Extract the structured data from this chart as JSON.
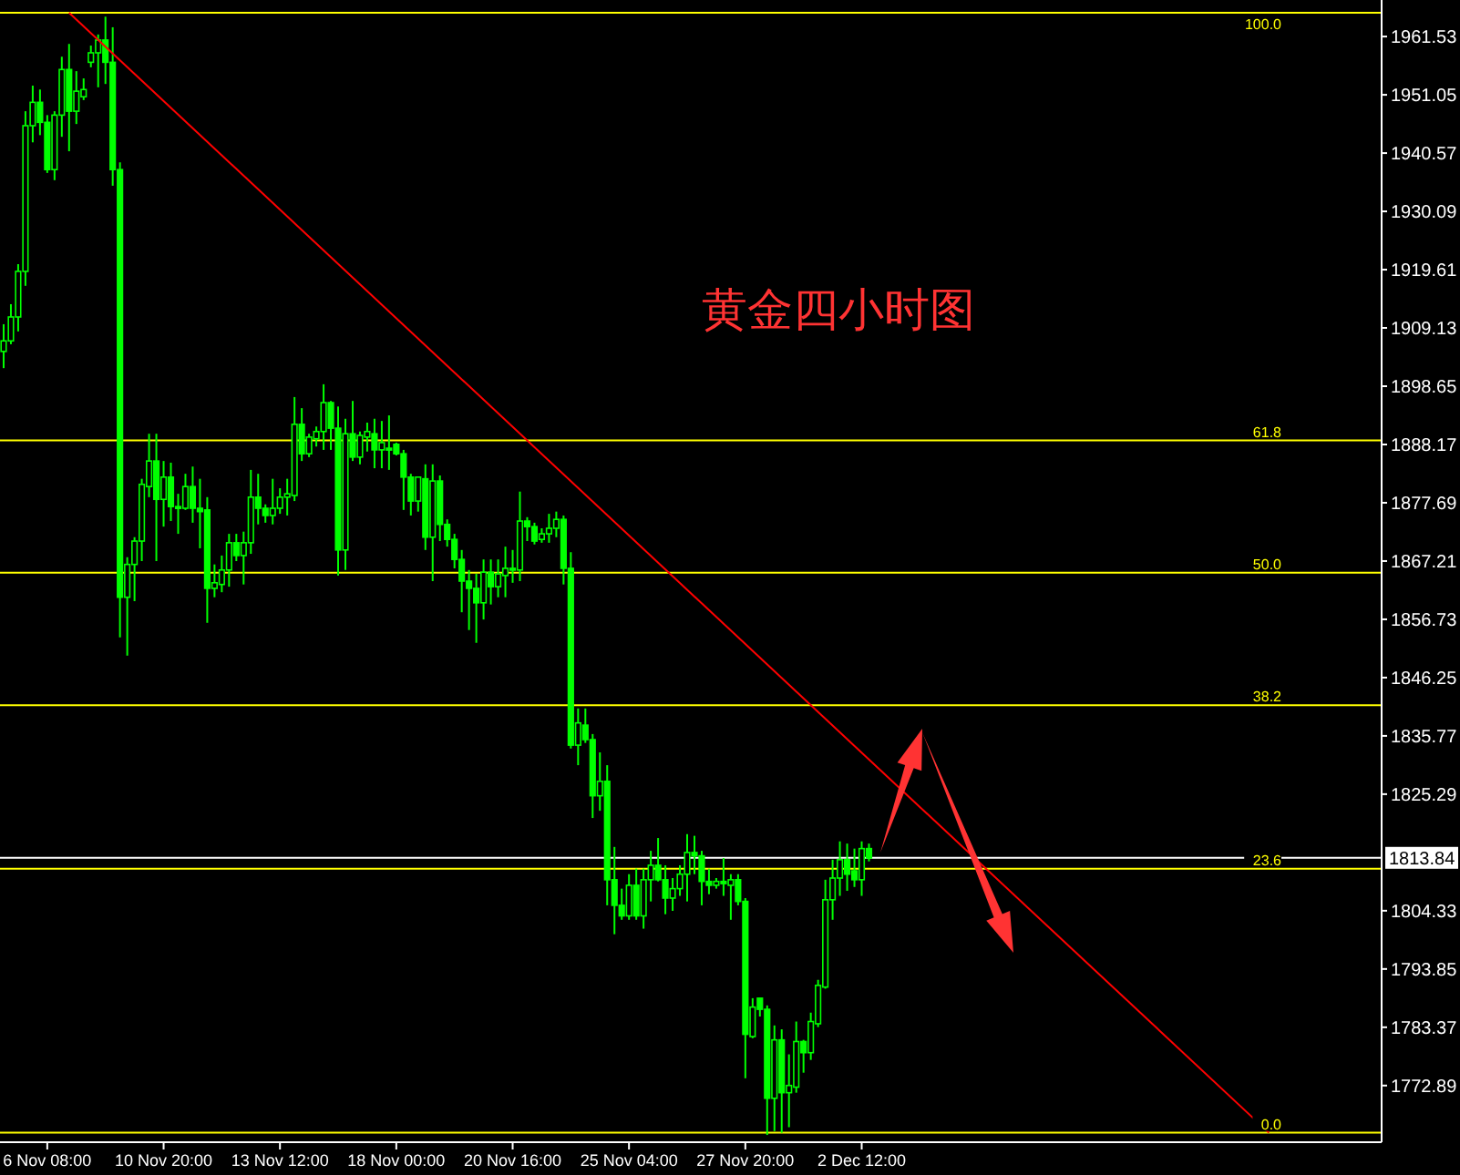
{
  "chart_data": {
    "type": "candlestick",
    "title": "黄金四小时图",
    "categories": [
      null,
      null,
      null,
      null,
      null,
      null,
      "6 Nov 08:00",
      null,
      null,
      null,
      null,
      null,
      null,
      null,
      null,
      null,
      null,
      null,
      null,
      null,
      null,
      null,
      "10 Nov 20:00",
      null,
      null,
      null,
      null,
      null,
      null,
      null,
      null,
      null,
      null,
      null,
      null,
      null,
      null,
      null,
      "13 Nov 12:00",
      null,
      null,
      null,
      null,
      null,
      null,
      null,
      null,
      null,
      null,
      null,
      null,
      null,
      null,
      null,
      "18 Nov 00:00",
      null,
      null,
      null,
      null,
      null,
      null,
      null,
      null,
      null,
      null,
      null,
      null,
      null,
      null,
      null,
      "20 Nov 16:00",
      null,
      null,
      null,
      null,
      null,
      null,
      null,
      null,
      null,
      null,
      null,
      null,
      null,
      null,
      null,
      "25 Nov 04:00",
      null,
      null,
      null,
      null,
      null,
      null,
      null,
      null,
      null,
      null,
      null,
      null,
      null,
      null,
      null,
      "27 Nov 20:00",
      null,
      null,
      null,
      null,
      null,
      null,
      null,
      null,
      null,
      null,
      null,
      null,
      null,
      null,
      null,
      "2 Dec 12:00",
      null,
      null,
      null,
      null,
      null,
      null,
      null,
      null,
      null,
      null,
      null,
      null,
      null,
      null,
      null,
      null,
      null,
      null,
      null,
      null,
      null,
      null,
      null,
      null,
      null,
      null,
      null,
      null,
      null,
      null,
      null,
      null,
      null,
      null,
      null,
      null,
      null,
      null,
      null,
      null,
      null,
      null,
      null,
      null,
      null,
      null,
      null,
      null,
      null,
      null,
      null,
      null,
      null,
      null,
      null,
      null,
      null,
      null,
      null,
      null,
      null,
      null,
      null,
      null,
      null,
      null,
      null,
      null,
      null,
      null,
      null
    ],
    "series": [
      {
        "color": "#00ff00",
        "ohlc": [
          [
            1904.9,
            1909.8,
            1901.9,
            1906.8
          ],
          [
            1906.8,
            1913.4,
            1906.2,
            1911.1
          ],
          [
            1911.1,
            1920.6,
            1908.5,
            1919.3
          ],
          [
            1919.3,
            1948.1,
            1916.7,
            1945.5
          ],
          [
            1945.5,
            1952.7,
            1942.5,
            1949.7
          ],
          [
            1949.7,
            1952.0,
            1943.8,
            1946.1
          ],
          [
            1946.1,
            1947.4,
            1937.0,
            1937.6
          ],
          [
            1937.6,
            1948.1,
            1935.7,
            1947.4
          ],
          [
            1947.4,
            1957.9,
            1943.5,
            1955.6
          ],
          [
            1955.6,
            1960.2,
            1940.9,
            1948.1
          ],
          [
            1948.1,
            1955.3,
            1945.8,
            1951.7
          ],
          [
            1950.7,
            1954.0,
            1950.1,
            1952.0
          ],
          [
            1956.9,
            1959.9,
            1956.0,
            1958.6
          ],
          [
            1958.6,
            1961.9,
            1952.4,
            1960.9
          ],
          [
            1960.9,
            1965.1,
            1953.0,
            1956.9
          ],
          [
            1956.9,
            1963.2,
            1934.7,
            1937.6
          ],
          [
            1937.6,
            1938.9,
            1853.5,
            1860.7
          ],
          [
            1860.7,
            1867.9,
            1850.2,
            1866.6
          ],
          [
            1866.6,
            1871.5,
            1860.0,
            1870.8
          ],
          [
            1870.8,
            1882.0,
            1867.2,
            1881.0
          ],
          [
            1880.6,
            1890.1,
            1878.7,
            1885.2
          ],
          [
            1885.2,
            1890.1,
            1867.2,
            1878.3
          ],
          [
            1878.3,
            1885.2,
            1873.4,
            1882.3
          ],
          [
            1882.3,
            1884.9,
            1874.4,
            1877.0
          ],
          [
            1877.0,
            1879.3,
            1872.1,
            1876.7
          ],
          [
            1876.7,
            1882.9,
            1876.4,
            1880.6
          ],
          [
            1880.6,
            1884.2,
            1874.1,
            1876.7
          ],
          [
            1876.7,
            1882.0,
            1869.5,
            1876.1
          ],
          [
            1876.4,
            1878.7,
            1856.1,
            1862.3
          ],
          [
            1862.3,
            1866.6,
            1860.7,
            1863.3
          ],
          [
            1863.0,
            1868.2,
            1861.6,
            1865.6
          ],
          [
            1865.6,
            1872.1,
            1862.6,
            1870.5
          ],
          [
            1870.5,
            1872.1,
            1867.2,
            1868.2
          ],
          [
            1868.2,
            1872.5,
            1863.0,
            1870.5
          ],
          [
            1870.5,
            1883.6,
            1868.5,
            1878.7
          ],
          [
            1878.7,
            1882.9,
            1873.8,
            1876.7
          ],
          [
            1876.7,
            1877.4,
            1874.1,
            1875.4
          ],
          [
            1875.4,
            1882.0,
            1873.8,
            1876.7
          ],
          [
            1876.7,
            1880.3,
            1875.7,
            1878.7
          ],
          [
            1878.7,
            1882.0,
            1875.4,
            1879.3
          ],
          [
            1879.0,
            1896.7,
            1878.0,
            1891.8
          ],
          [
            1891.8,
            1894.7,
            1885.2,
            1886.5
          ],
          [
            1886.5,
            1890.1,
            1885.9,
            1889.5
          ],
          [
            1889.2,
            1891.4,
            1887.8,
            1890.5
          ],
          [
            1890.5,
            1899.0,
            1887.2,
            1895.7
          ],
          [
            1895.7,
            1896.0,
            1887.2,
            1891.1
          ],
          [
            1891.1,
            1895.0,
            1864.6,
            1869.2
          ],
          [
            1869.2,
            1892.8,
            1865.6,
            1890.1
          ],
          [
            1890.1,
            1896.0,
            1885.2,
            1885.9
          ],
          [
            1885.9,
            1890.5,
            1884.6,
            1889.8
          ],
          [
            1889.5,
            1892.1,
            1886.9,
            1890.5
          ],
          [
            1890.1,
            1892.8,
            1883.9,
            1887.2
          ],
          [
            1887.2,
            1892.4,
            1883.9,
            1888.5
          ],
          [
            1887.5,
            1893.4,
            1883.6,
            1887.2
          ],
          [
            1888.2,
            1888.5,
            1886.2,
            1886.5
          ],
          [
            1886.5,
            1887.2,
            1876.4,
            1882.3
          ],
          [
            1882.3,
            1882.9,
            1875.4,
            1878.0
          ],
          [
            1878.0,
            1882.3,
            1876.1,
            1882.3
          ],
          [
            1882.0,
            1884.6,
            1869.2,
            1871.5
          ],
          [
            1871.5,
            1884.6,
            1863.6,
            1881.6
          ],
          [
            1881.6,
            1882.6,
            1870.8,
            1873.8
          ],
          [
            1873.8,
            1874.7,
            1869.8,
            1871.1
          ],
          [
            1871.1,
            1872.1,
            1865.9,
            1867.5
          ],
          [
            1867.5,
            1869.2,
            1858.0,
            1863.6
          ],
          [
            1863.6,
            1865.6,
            1854.8,
            1862.3
          ],
          [
            1862.3,
            1864.9,
            1852.5,
            1859.7
          ],
          [
            1859.7,
            1867.5,
            1856.7,
            1865.2
          ],
          [
            1865.2,
            1867.5,
            1859.4,
            1862.6
          ],
          [
            1862.6,
            1867.5,
            1860.7,
            1864.9
          ],
          [
            1864.6,
            1869.8,
            1860.7,
            1865.9
          ],
          [
            1865.9,
            1869.2,
            1863.3,
            1865.6
          ],
          [
            1865.6,
            1879.7,
            1863.6,
            1874.4
          ],
          [
            1874.4,
            1875.1,
            1870.8,
            1873.4
          ],
          [
            1873.4,
            1874.1,
            1870.2,
            1870.8
          ],
          [
            1871.1,
            1873.1,
            1870.5,
            1872.1
          ],
          [
            1872.1,
            1875.7,
            1870.5,
            1873.1
          ],
          [
            1873.1,
            1876.1,
            1871.5,
            1874.7
          ],
          [
            1874.7,
            1875.4,
            1863.0,
            1865.9
          ],
          [
            1865.9,
            1868.8,
            1833.5,
            1834.1
          ],
          [
            1834.1,
            1840.7,
            1830.5,
            1838.1
          ],
          [
            1837.7,
            1840.7,
            1834.5,
            1835.1
          ],
          [
            1835.1,
            1836.1,
            1821.0,
            1825.0
          ],
          [
            1825.0,
            1832.8,
            1822.3,
            1827.6
          ],
          [
            1827.6,
            1830.5,
            1805.3,
            1809.9
          ],
          [
            1809.9,
            1815.8,
            1800.1,
            1805.3
          ],
          [
            1805.3,
            1808.3,
            1802.7,
            1803.4
          ],
          [
            1803.4,
            1810.9,
            1802.7,
            1808.9
          ],
          [
            1808.9,
            1811.9,
            1802.7,
            1803.4
          ],
          [
            1803.4,
            1811.9,
            1801.1,
            1809.9
          ],
          [
            1809.9,
            1815.1,
            1806.0,
            1812.5
          ],
          [
            1812.5,
            1817.4,
            1809.6,
            1809.9
          ],
          [
            1809.9,
            1812.5,
            1803.7,
            1806.6
          ],
          [
            1806.6,
            1810.2,
            1804.3,
            1808.3
          ],
          [
            1808.3,
            1812.5,
            1807.0,
            1810.9
          ],
          [
            1810.9,
            1818.1,
            1806.0,
            1814.8
          ],
          [
            1814.8,
            1817.8,
            1810.9,
            1814.2
          ],
          [
            1814.2,
            1815.1,
            1805.3,
            1809.6
          ],
          [
            1809.6,
            1811.9,
            1807.3,
            1808.9
          ],
          [
            1808.9,
            1810.2,
            1808.3,
            1809.6
          ],
          [
            1809.6,
            1813.8,
            1807.0,
            1809.2
          ],
          [
            1808.9,
            1810.9,
            1802.7,
            1809.9
          ],
          [
            1809.9,
            1810.9,
            1805.3,
            1806.0
          ],
          [
            1806.0,
            1806.6,
            1774.2,
            1782.1
          ],
          [
            1781.7,
            1788.6,
            1781.4,
            1787.0
          ],
          [
            1788.6,
            1788.6,
            1785.3,
            1786.6
          ],
          [
            1786.6,
            1787.3,
            1764.0,
            1770.6
          ],
          [
            1770.6,
            1783.7,
            1764.7,
            1781.1
          ],
          [
            1781.1,
            1783.0,
            1764.4,
            1771.6
          ],
          [
            1771.6,
            1778.5,
            1765.4,
            1772.9
          ],
          [
            1772.6,
            1784.4,
            1771.6,
            1780.8
          ],
          [
            1780.8,
            1781.1,
            1775.2,
            1778.8
          ],
          [
            1778.8,
            1786.0,
            1777.5,
            1784.4
          ],
          [
            1784.0,
            1791.9,
            1783.4,
            1790.9
          ],
          [
            1790.6,
            1809.9,
            1790.3,
            1806.3
          ],
          [
            1806.3,
            1813.5,
            1802.7,
            1810.2
          ],
          [
            1810.2,
            1816.8,
            1807.0,
            1813.5
          ],
          [
            1813.5,
            1816.4,
            1807.9,
            1810.9
          ],
          [
            1811.5,
            1815.5,
            1808.6,
            1809.9
          ],
          [
            1809.9,
            1816.8,
            1807.0,
            1815.5
          ],
          [
            1815.5,
            1816.4,
            1813.2,
            1813.8
          ],
          null,
          null,
          null,
          null,
          null,
          null,
          null,
          null,
          null,
          null,
          null,
          null,
          null,
          null,
          null,
          null,
          null,
          null,
          null,
          null,
          null,
          null,
          null,
          null,
          null,
          null,
          null,
          null,
          null,
          null,
          null,
          null,
          null,
          null,
          null,
          null,
          null,
          null,
          null,
          null,
          null,
          null,
          null,
          null,
          null,
          null,
          null,
          null,
          null,
          null,
          null,
          null,
          null,
          null,
          null,
          null,
          null,
          null,
          null,
          null,
          null,
          null,
          null,
          null,
          null,
          null,
          null,
          null,
          null,
          null
        ]
      },
      {
        "type": "line",
        "color": "#ff0000",
        "values": [
          null,
          null,
          null,
          null,
          null,
          null,
          null,
          null,
          null,
          1965.8,
          null,
          null,
          null,
          null,
          null,
          null,
          null,
          null,
          null,
          null,
          null,
          null,
          null,
          null,
          null,
          null,
          null,
          null,
          null,
          null,
          null,
          null,
          null,
          null,
          null,
          null,
          null,
          null,
          null,
          null,
          null,
          null,
          null,
          null,
          null,
          null,
          null,
          null,
          null,
          null,
          null,
          null,
          null,
          null,
          null,
          null,
          null,
          null,
          null,
          null,
          null,
          null,
          null,
          null,
          null,
          null,
          null,
          null,
          null,
          null,
          null,
          null,
          null,
          null,
          null,
          null,
          null,
          null,
          null,
          null,
          null,
          null,
          null,
          null,
          null,
          null,
          null,
          null,
          null,
          null,
          null,
          null,
          null,
          null,
          null,
          null,
          null,
          null,
          null,
          null,
          null,
          null,
          null,
          null,
          null,
          null,
          null,
          null,
          null,
          null,
          null,
          null,
          null,
          null,
          null,
          null,
          null,
          null,
          null,
          null,
          null,
          null,
          null,
          null,
          null,
          null,
          null,
          null,
          null,
          null,
          null,
          null,
          null,
          null,
          null,
          null,
          null,
          null,
          null,
          null,
          null,
          null,
          null,
          null,
          null,
          null,
          null,
          null,
          null,
          null,
          null,
          null,
          null,
          null,
          null,
          null,
          null,
          null,
          null,
          null,
          null,
          null,
          null,
          null,
          null,
          null,
          null,
          null,
          null,
          null,
          null,
          null,
          null,
          null,
          1764.4,
          null,
          null,
          null,
          null,
          null,
          null,
          null,
          null,
          null,
          null,
          null,
          null,
          null,
          null,
          null
        ]
      }
    ],
    "ylim": [
      1762.7,
      1968.1
    ],
    "yticks": [
      1961.53,
      1951.05,
      1940.57,
      1930.09,
      1919.61,
      1909.13,
      1898.65,
      1888.17,
      1877.69,
      1867.21,
      1856.73,
      1846.25,
      1835.77,
      1825.29,
      1804.33,
      1793.85,
      1783.37,
      1772.89
    ],
    "ref_lines": [
      {
        "axis": "y",
        "value": 1965.8,
        "color": "#ffff00"
      },
      {
        "axis": "y",
        "value": 1888.9,
        "color": "#ffff00"
      },
      {
        "axis": "y",
        "value": 1865.1,
        "color": "#ffff00"
      },
      {
        "axis": "y",
        "value": 1841.3,
        "color": "#ffff00"
      },
      {
        "axis": "y",
        "value": 1811.9,
        "color": "#ffff00"
      },
      {
        "axis": "y",
        "value": 1764.4,
        "color": "#ffff00"
      },
      {
        "axis": "y",
        "value": 1813.84,
        "label": "1813.84",
        "color": "#ffffff"
      }
    ],
    "annotations": [
      {
        "text": "100.0",
        "y": 1965.8
      },
      {
        "text": "61.8",
        "y": 1888.9
      },
      {
        "text": "50.0",
        "y": 1865.1
      },
      {
        "text": "38.2",
        "y": 1841.3
      },
      {
        "text": "23.6",
        "y": 1811.9
      },
      {
        "text": "0.0",
        "y": 1764.4
      }
    ]
  }
}
